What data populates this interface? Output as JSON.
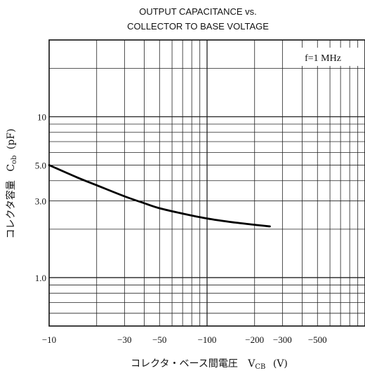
{
  "chart_data": {
    "type": "line",
    "title": "OUTPUT CAPACITANCE vs.",
    "subtitle": "COLLECTOR TO BASE VOLTAGE",
    "annotation": "f=1 MHz",
    "xlabel": "コレクタ・ベース間電圧",
    "xlabel_symbol": "V",
    "xlabel_subscript": "CB",
    "xlabel_unit": "(V)",
    "ylabel": "コレクタ容量",
    "ylabel_symbol": "C",
    "ylabel_subscript": "ob",
    "ylabel_unit": "(pF)",
    "x_scale": "log",
    "y_scale": "log",
    "xlim": [
      -10,
      -1000
    ],
    "ylim": [
      0.5,
      30
    ],
    "x_ticks": [
      {
        "value": -10,
        "label": "−10"
      },
      {
        "value": -30,
        "label": "−30"
      },
      {
        "value": -50,
        "label": "−50"
      },
      {
        "value": -100,
        "label": "−100"
      },
      {
        "value": -200,
        "label": "−200"
      },
      {
        "value": -300,
        "label": "−300"
      },
      {
        "value": -500,
        "label": "−500"
      }
    ],
    "y_ticks": [
      {
        "value": 1.0,
        "label": "1.0"
      },
      {
        "value": 3.0,
        "label": "3.0"
      },
      {
        "value": 5.0,
        "label": "5.0"
      },
      {
        "value": 10,
        "label": "10"
      }
    ],
    "grid": true,
    "series": [
      {
        "x": [
          -10,
          -15,
          -20,
          -30,
          -40,
          -50,
          -70,
          -100,
          -150,
          -200,
          -250
        ],
        "y": [
          5.0,
          4.2,
          3.75,
          3.2,
          2.9,
          2.7,
          2.5,
          2.33,
          2.2,
          2.13,
          2.08
        ]
      }
    ]
  }
}
